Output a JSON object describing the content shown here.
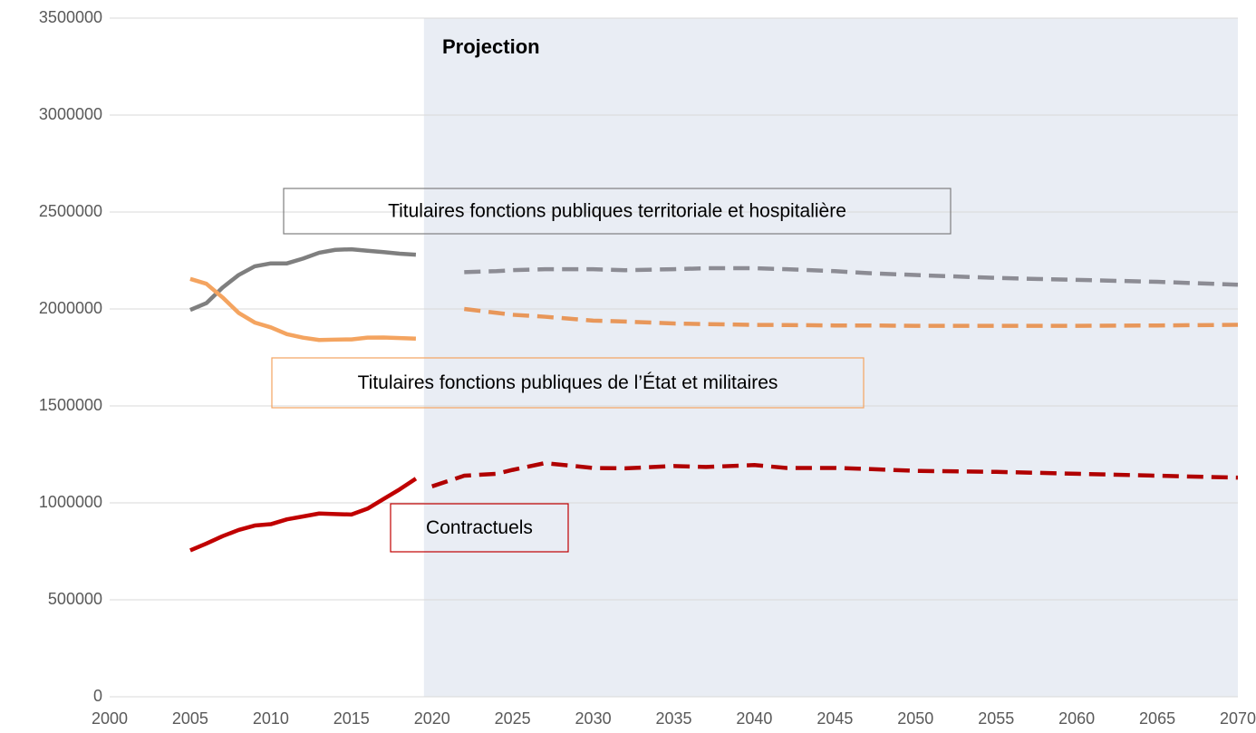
{
  "chart_data": {
    "type": "line",
    "annotation": "Projection",
    "shaded_xrange": [
      2019.5,
      2070
    ],
    "shade_color": "#e9edf4",
    "x_history": [
      2005,
      2006,
      2007,
      2008,
      2009,
      2010,
      2011,
      2012,
      2013,
      2014,
      2015,
      2016,
      2017,
      2018,
      2019
    ],
    "x_projection": [
      2020,
      2022,
      2024,
      2025,
      2027,
      2030,
      2032,
      2035,
      2037,
      2040,
      2042,
      2045,
      2047,
      2050,
      2055,
      2060,
      2065,
      2070
    ],
    "series": [
      {
        "name": "Titulaires fonctions publiques territoriale et hospitalière",
        "color": "#7f7f7f",
        "projection_color": "#8c8c94",
        "values": [
          1995000,
          2030000,
          2110000,
          2175000,
          2220000,
          2235000,
          2235000,
          2260000,
          2290000,
          2305000,
          2308000,
          2300000,
          2293000,
          2285000,
          2280000
        ],
        "projection_values": [
          null,
          2190000,
          2195000,
          2200000,
          2205000,
          2205000,
          2200000,
          2205000,
          2210000,
          2210000,
          2205000,
          2195000,
          2185000,
          2175000,
          2160000,
          2150000,
          2140000,
          2125000
        ]
      },
      {
        "name": "Titulaires fonctions publiques de l’État et militaires",
        "color": "#f4a460",
        "projection_color": "#e8975a",
        "values": [
          2155000,
          2130000,
          2060000,
          1980000,
          1930000,
          1905000,
          1870000,
          1852000,
          1840000,
          1842000,
          1843000,
          1852000,
          1853000,
          1850000,
          1847000
        ],
        "projection_values": [
          null,
          2000000,
          1980000,
          1970000,
          1960000,
          1940000,
          1935000,
          1925000,
          1922000,
          1918000,
          1917000,
          1915000,
          1915000,
          1913000,
          1913000,
          1913000,
          1915000,
          1918000
        ]
      },
      {
        "name": "Contractuels",
        "color": "#c00000",
        "projection_color": "#b00000",
        "values": [
          755000,
          790000,
          828000,
          860000,
          883000,
          890000,
          915000,
          930000,
          945000,
          942000,
          940000,
          970000,
          1020000,
          1070000,
          1125000
        ],
        "projection_values": [
          1085000,
          1140000,
          1150000,
          1170000,
          1205000,
          1180000,
          1178000,
          1190000,
          1185000,
          1195000,
          1180000,
          1180000,
          1175000,
          1165000,
          1160000,
          1150000,
          1140000,
          1130000
        ]
      }
    ],
    "xlim": [
      2000,
      2070
    ],
    "xticks": [
      2000,
      2005,
      2010,
      2015,
      2020,
      2025,
      2030,
      2035,
      2040,
      2045,
      2050,
      2055,
      2060,
      2065,
      2070
    ],
    "ylim": [
      0,
      3500000
    ],
    "yticks": [
      0,
      500000,
      1000000,
      1500000,
      2000000,
      2500000,
      3000000,
      3500000
    ],
    "grid": true
  }
}
